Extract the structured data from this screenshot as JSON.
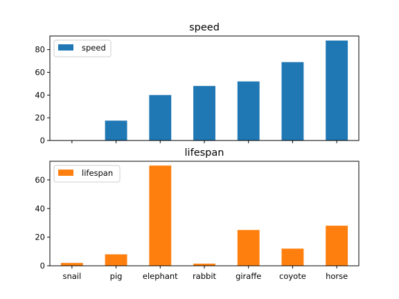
{
  "chart_data": [
    {
      "type": "bar",
      "title": "speed",
      "categories": [
        "snail",
        "pig",
        "elephant",
        "rabbit",
        "giraffe",
        "coyote",
        "horse"
      ],
      "series": [
        {
          "name": "speed",
          "values": [
            0.1,
            17.5,
            40,
            48,
            52,
            69,
            88
          ],
          "color": "#1f77b4"
        }
      ],
      "ylim": [
        0,
        92
      ],
      "yticks": [
        "0",
        "20",
        "40",
        "60",
        "80"
      ],
      "xtick_labels_visible": false,
      "legend": "top-left",
      "grid": false
    },
    {
      "type": "bar",
      "title": "lifespan",
      "categories": [
        "snail",
        "pig",
        "elephant",
        "rabbit",
        "giraffe",
        "coyote",
        "horse"
      ],
      "series": [
        {
          "name": "lifespan",
          "values": [
            2,
            8,
            70,
            1.5,
            25,
            12,
            28
          ],
          "color": "#ff7f0e"
        }
      ],
      "ylim": [
        0,
        73
      ],
      "yticks": [
        "0",
        "20",
        "40",
        "60"
      ],
      "xtick_labels_visible": true,
      "legend": "top-left",
      "grid": false
    }
  ]
}
